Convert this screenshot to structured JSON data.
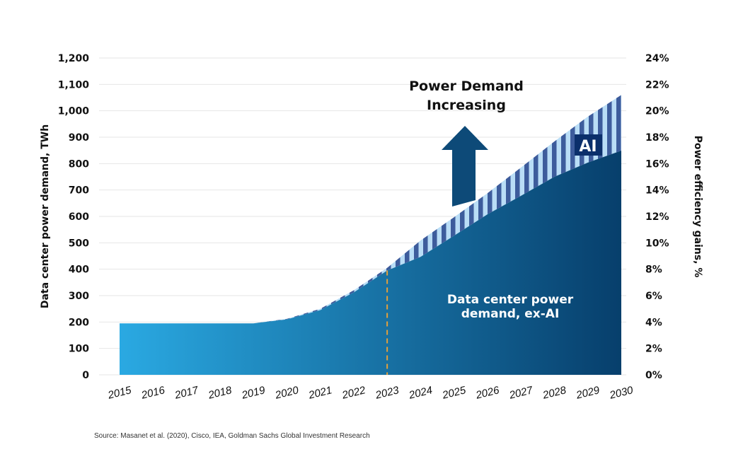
{
  "chart_data": {
    "type": "area",
    "title": "",
    "categories": [
      "2015",
      "2016",
      "2017",
      "2018",
      "2019",
      "2020",
      "2021",
      "2022",
      "2023",
      "2024",
      "2025",
      "2026",
      "2027",
      "2028",
      "2029",
      "2030"
    ],
    "series": [
      {
        "name": "Data center power demand, ex-AI",
        "values": [
          195,
          195,
          195,
          195,
          195,
          210,
          245,
          312,
          395,
          447,
          527,
          608,
          678,
          750,
          804,
          849
        ]
      },
      {
        "name": "AI",
        "values": [
          0,
          0,
          0,
          0,
          0,
          2,
          5,
          8,
          10,
          62,
          70,
          80,
          107,
          134,
          174,
          211
        ]
      }
    ],
    "ylabel": "Data center power demand, TWh",
    "ylim": [
      0,
      1200
    ],
    "yticks": [
      "0",
      "100",
      "200",
      "300",
      "400",
      "500",
      "600",
      "700",
      "800",
      "900",
      "1,000",
      "1,100",
      "1,200"
    ],
    "y2label": "Power efficiency gains, %",
    "y2lim": [
      0,
      24
    ],
    "y2ticks": [
      "0%",
      "2%",
      "4%",
      "6%",
      "8%",
      "10%",
      "12%",
      "14%",
      "16%",
      "18%",
      "20%",
      "22%",
      "24%"
    ],
    "grid": true,
    "stacked": true,
    "vertical_marker": "2023",
    "annotations": {
      "arrow_text": [
        "Power Demand",
        "Increasing"
      ],
      "ai_label": "AI",
      "exai_label": [
        "Data center power",
        "demand, ex-AI"
      ]
    },
    "colors": {
      "exai_left": "#2aa9e2",
      "exai_right": "#073f6c",
      "ai_stripe_dark": "#3d5c9c",
      "ai_stripe_light": "#b9ddf6",
      "arrow": "#0d4a78",
      "ai_box": "#0b2f6b",
      "marker": "#e3a13b"
    }
  },
  "source": "Source: Masanet et al. (2020), Cisco, IEA, Goldman Sachs Global Investment Research"
}
